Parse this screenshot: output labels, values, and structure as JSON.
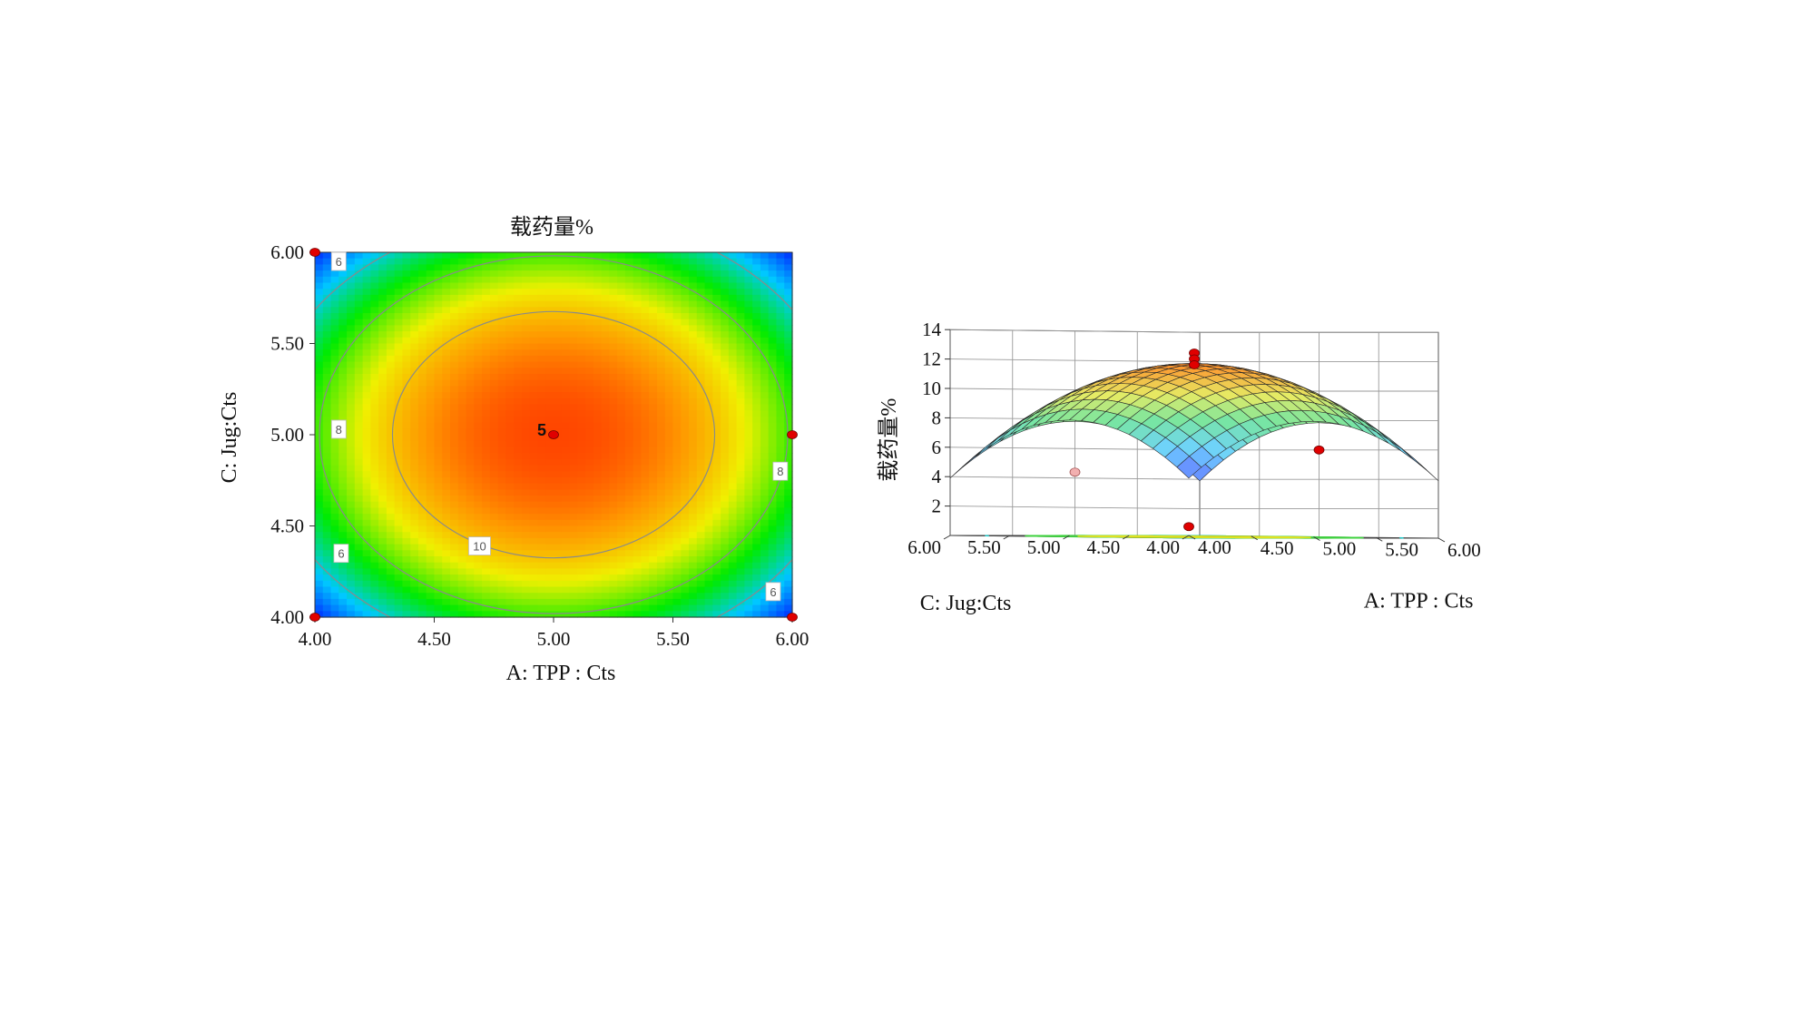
{
  "chart_data": [
    {
      "type": "heatmap",
      "subtype": "contour",
      "title": "载药量%",
      "xlabel": "A: TPP : Cts",
      "ylabel": "C: Jug:Cts",
      "xlim": [
        4.0,
        6.0
      ],
      "ylim": [
        4.0,
        6.0
      ],
      "x_ticks": [
        "4.00",
        "4.50",
        "5.00",
        "5.50",
        "6.00"
      ],
      "y_ticks": [
        "4.00",
        "4.50",
        "5.00",
        "5.50",
        "6.00"
      ],
      "peak": {
        "x": 5.0,
        "y": 5.0,
        "value": 11.8
      },
      "corner_value": 3.9,
      "contour_levels": [
        {
          "value": 6,
          "label": "6"
        },
        {
          "value": 8,
          "label": "8"
        },
        {
          "value": 10,
          "label": "10"
        }
      ],
      "contour_labels": [
        {
          "text": "6",
          "x": 4.1,
          "y": 5.95
        },
        {
          "text": "8",
          "x": 4.1,
          "y": 5.03
        },
        {
          "text": "10",
          "x": 4.69,
          "y": 4.39
        },
        {
          "text": "6",
          "x": 4.11,
          "y": 4.35
        },
        {
          "text": "8",
          "x": 5.95,
          "y": 4.8
        },
        {
          "text": "6",
          "x": 5.92,
          "y": 4.14
        }
      ],
      "design_points": [
        {
          "x": 4.0,
          "y": 6.0
        },
        {
          "x": 4.0,
          "y": 4.0
        },
        {
          "x": 6.0,
          "y": 5.0
        },
        {
          "x": 6.0,
          "y": 4.0
        },
        {
          "x": 5.0,
          "y": 5.0,
          "label": "5"
        }
      ]
    },
    {
      "type": "surface",
      "zlabel": "载药量%",
      "xlabel": "A: TPP : Cts",
      "ylabel": "C: Jug:Cts",
      "xlim": [
        4.0,
        6.0
      ],
      "ylim": [
        4.0,
        6.0
      ],
      "zlim": [
        0,
        14
      ],
      "x_ticks": [
        "4.00",
        "4.50",
        "5.00",
        "5.50",
        "6.00"
      ],
      "y_ticks": [
        "4.00",
        "4.50",
        "5.00",
        "5.50",
        "6.00"
      ],
      "z_ticks": [
        "2",
        "4",
        "6",
        "8",
        "10",
        "12",
        "14"
      ],
      "peak": {
        "x": 5.0,
        "y": 5.0,
        "value": 11.8
      },
      "corner_value": 3.9,
      "floor_contours": [
        6,
        8,
        10
      ],
      "design_points": [
        {
          "x": 5.0,
          "y": 5.0,
          "z": 12.5
        },
        {
          "x": 5.0,
          "y": 5.0,
          "z": 12.1
        },
        {
          "x": 5.0,
          "y": 5.0,
          "z": 11.7
        },
        {
          "x": 6.0,
          "y": 5.0,
          "z": 6.0
        },
        {
          "x": 5.0,
          "y": 6.0,
          "z": 4.4,
          "below": true
        },
        {
          "x": 4.0,
          "y": 4.0,
          "z": 0.6
        }
      ]
    }
  ]
}
